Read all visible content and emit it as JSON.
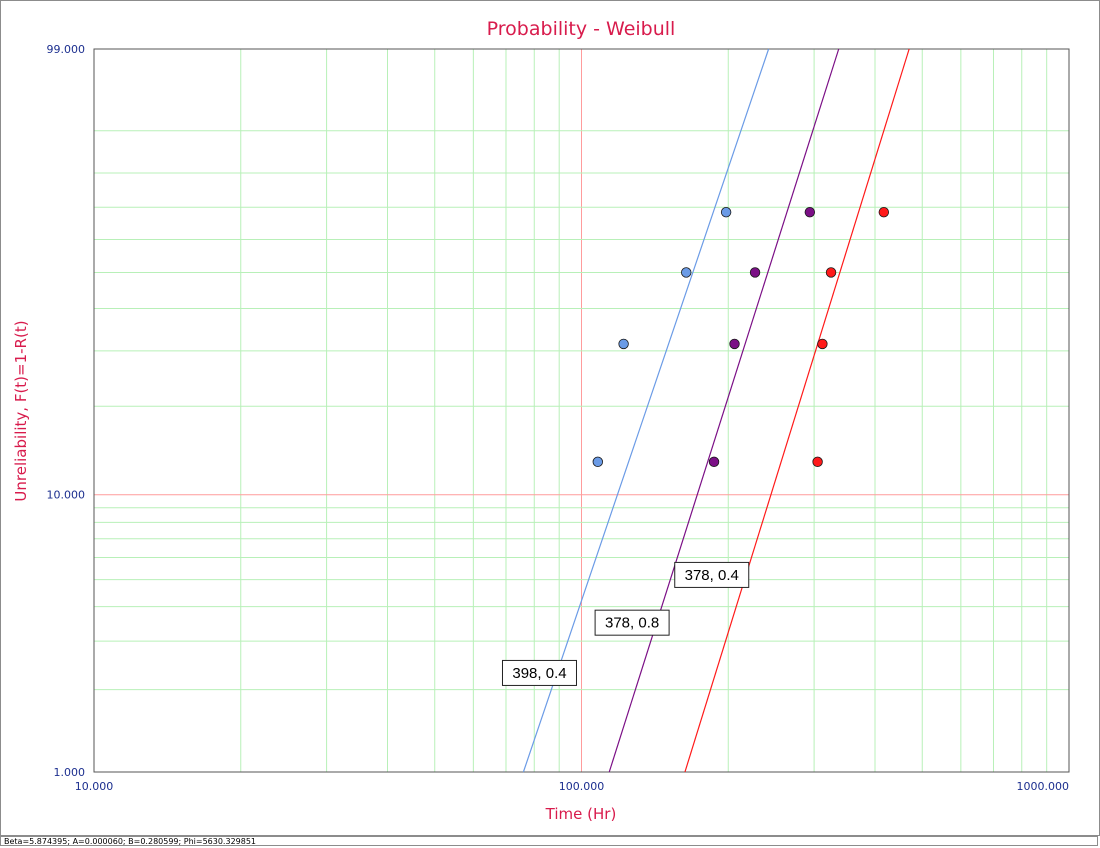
{
  "status_text": "Beta=5.874395; A=0.000060; B=0.280599; Phi=5630.329851",
  "chart_data": {
    "type": "scatter",
    "title": "Probability - Weibull",
    "xlabel": "Time (Hr)",
    "ylabel": "Unreliability, F(t)=1-R(t)",
    "x_scale": "log",
    "y_scale": "weibull",
    "xlim": [
      10,
      1000
    ],
    "ylim": [
      1,
      99
    ],
    "x_ticks": [
      "10.000",
      "100.000",
      "1000.000"
    ],
    "y_ticks": [
      "1.000",
      "10.000",
      "99.000"
    ],
    "grid": true,
    "legend": "none",
    "series": [
      {
        "color": "#6b9be6",
        "points": [
          [
            108,
            13.0
          ],
          [
            122,
            31.5
          ],
          [
            164,
            50.0
          ],
          [
            198,
            68.5
          ]
        ],
        "line": {
          "x": [
            76,
            242
          ],
          "y": [
            1,
            99
          ]
        }
      },
      {
        "color": "#7b0f86",
        "points": [
          [
            187,
            13.0
          ],
          [
            206,
            31.5
          ],
          [
            227,
            50.0
          ],
          [
            294,
            68.5
          ]
        ],
        "line": {
          "x": [
            114,
            337
          ],
          "y": [
            1,
            99
          ]
        }
      },
      {
        "color": "#ff1a1a",
        "points": [
          [
            305,
            13.0
          ],
          [
            312,
            31.5
          ],
          [
            325,
            50.0
          ],
          [
            417,
            68.5
          ]
        ],
        "line": {
          "x": [
            163,
            470
          ],
          "y": [
            1,
            99
          ]
        }
      }
    ],
    "annotations": [
      {
        "text": "398, 0.4",
        "x": 82,
        "y": 2.3
      },
      {
        "text": "378, 0.8",
        "x": 127,
        "y": 3.5
      },
      {
        "text": "378, 0.4",
        "x": 185,
        "y": 5.2
      }
    ]
  }
}
